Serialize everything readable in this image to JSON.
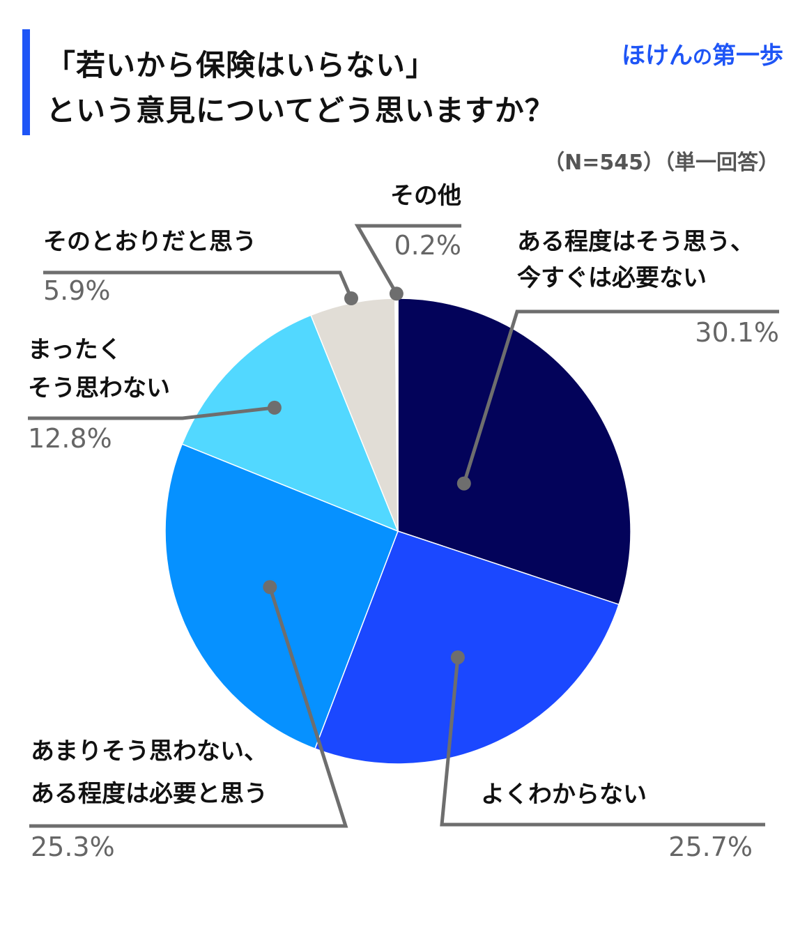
{
  "header": {
    "title_line1": "「若いから保険はいらない」",
    "title_line2": "という意見についてどう思いますか？",
    "brand_a": "ほけん",
    "brand_b": "の",
    "brand_c": "第一歩",
    "sample_note": "（N=545）（単一回答）"
  },
  "chart_data": {
    "type": "pie",
    "start_angle_deg": 0,
    "direction": "clockwise",
    "slices": [
      {
        "label_lines": [
          "ある程度はそう思う、",
          "今すぐは必要ない"
        ],
        "value": 30.1,
        "value_text": "30.1%",
        "color": "#03035a"
      },
      {
        "label_lines": [
          "よくわからない"
        ],
        "value": 25.7,
        "value_text": "25.7%",
        "color": "#1b48ff"
      },
      {
        "label_lines": [
          "あまりそう思わない、",
          "ある程度は必要と思う"
        ],
        "value": 25.3,
        "value_text": "25.3%",
        "color": "#0691ff"
      },
      {
        "label_lines": [
          "まったく",
          "そう思わない"
        ],
        "value": 12.8,
        "value_text": "12.8%",
        "color": "#52d8ff"
      },
      {
        "label_lines": [
          "そのとおりだと思う"
        ],
        "value": 5.9,
        "value_text": "5.9%",
        "color": "#e1ddd6"
      },
      {
        "label_lines": [
          "その他"
        ],
        "value": 0.2,
        "value_text": "0.2%",
        "color": "#ffffff"
      }
    ]
  }
}
